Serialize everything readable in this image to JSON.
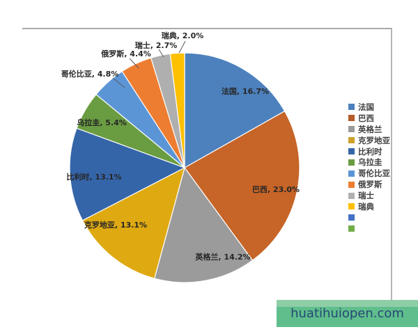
{
  "watermark": {
    "text": "huatihuiopen.com",
    "bg": "#5fbe8c",
    "bg_light": "#8ecea7",
    "text_color": "#274776"
  },
  "chart_data": {
    "type": "pie",
    "start_angle_deg": 0,
    "direction": "clockwise",
    "legend_position": "right",
    "label_format": "{name}, {pct}%",
    "slices": [
      {
        "name": "法国",
        "value": 16.7,
        "pct": "16.7",
        "color": "#4d81bd",
        "label_placement": "inside"
      },
      {
        "name": "巴西",
        "value": 23.0,
        "pct": "23.0",
        "color": "#c66527",
        "label_placement": "inside"
      },
      {
        "name": "英格兰",
        "value": 14.2,
        "pct": "14.2",
        "color": "#9b9b9b",
        "label_placement": "inside"
      },
      {
        "name": "克罗地亚",
        "value": 13.1,
        "pct": "13.1",
        "color": "#dfa912",
        "label_placement": "inside"
      },
      {
        "name": "比利时",
        "value": 13.1,
        "pct": "13.1",
        "color": "#3565a9",
        "label_placement": "inside"
      },
      {
        "name": "乌拉圭",
        "value": 5.4,
        "pct": "5.4",
        "color": "#6a9c42",
        "label_placement": "inside"
      },
      {
        "name": "哥伦比亚",
        "value": 4.8,
        "pct": "4.8",
        "color": "#5c95d6",
        "label_placement": "outside"
      },
      {
        "name": "俄罗斯",
        "value": 4.4,
        "pct": "4.4",
        "color": "#ed7d31",
        "label_placement": "outside"
      },
      {
        "name": "瑞士",
        "value": 2.7,
        "pct": "2.7",
        "color": "#afafaf",
        "label_placement": "outside"
      },
      {
        "name": "瑞典",
        "value": 2.0,
        "pct": "2.0",
        "color": "#fec001",
        "label_placement": "outside"
      }
    ],
    "legend": [
      {
        "label": "法国",
        "color": "#4d81bd"
      },
      {
        "label": "巴西",
        "color": "#b55a28"
      },
      {
        "label": "英格兰",
        "color": "#9b9b9b"
      },
      {
        "label": "克罗地亚",
        "color": "#cda12c"
      },
      {
        "label": "比利时",
        "color": "#3565a9"
      },
      {
        "label": "乌拉圭",
        "color": "#6a9c42"
      },
      {
        "label": "哥伦比亚",
        "color": "#5c95d6"
      },
      {
        "label": "俄罗斯",
        "color": "#ed7d31"
      },
      {
        "label": "瑞士",
        "color": "#afafaf"
      },
      {
        "label": "瑞典",
        "color": "#fec001"
      },
      {
        "label": "",
        "color": "#4472c4"
      },
      {
        "label": "",
        "color": "#70ad47"
      }
    ]
  }
}
